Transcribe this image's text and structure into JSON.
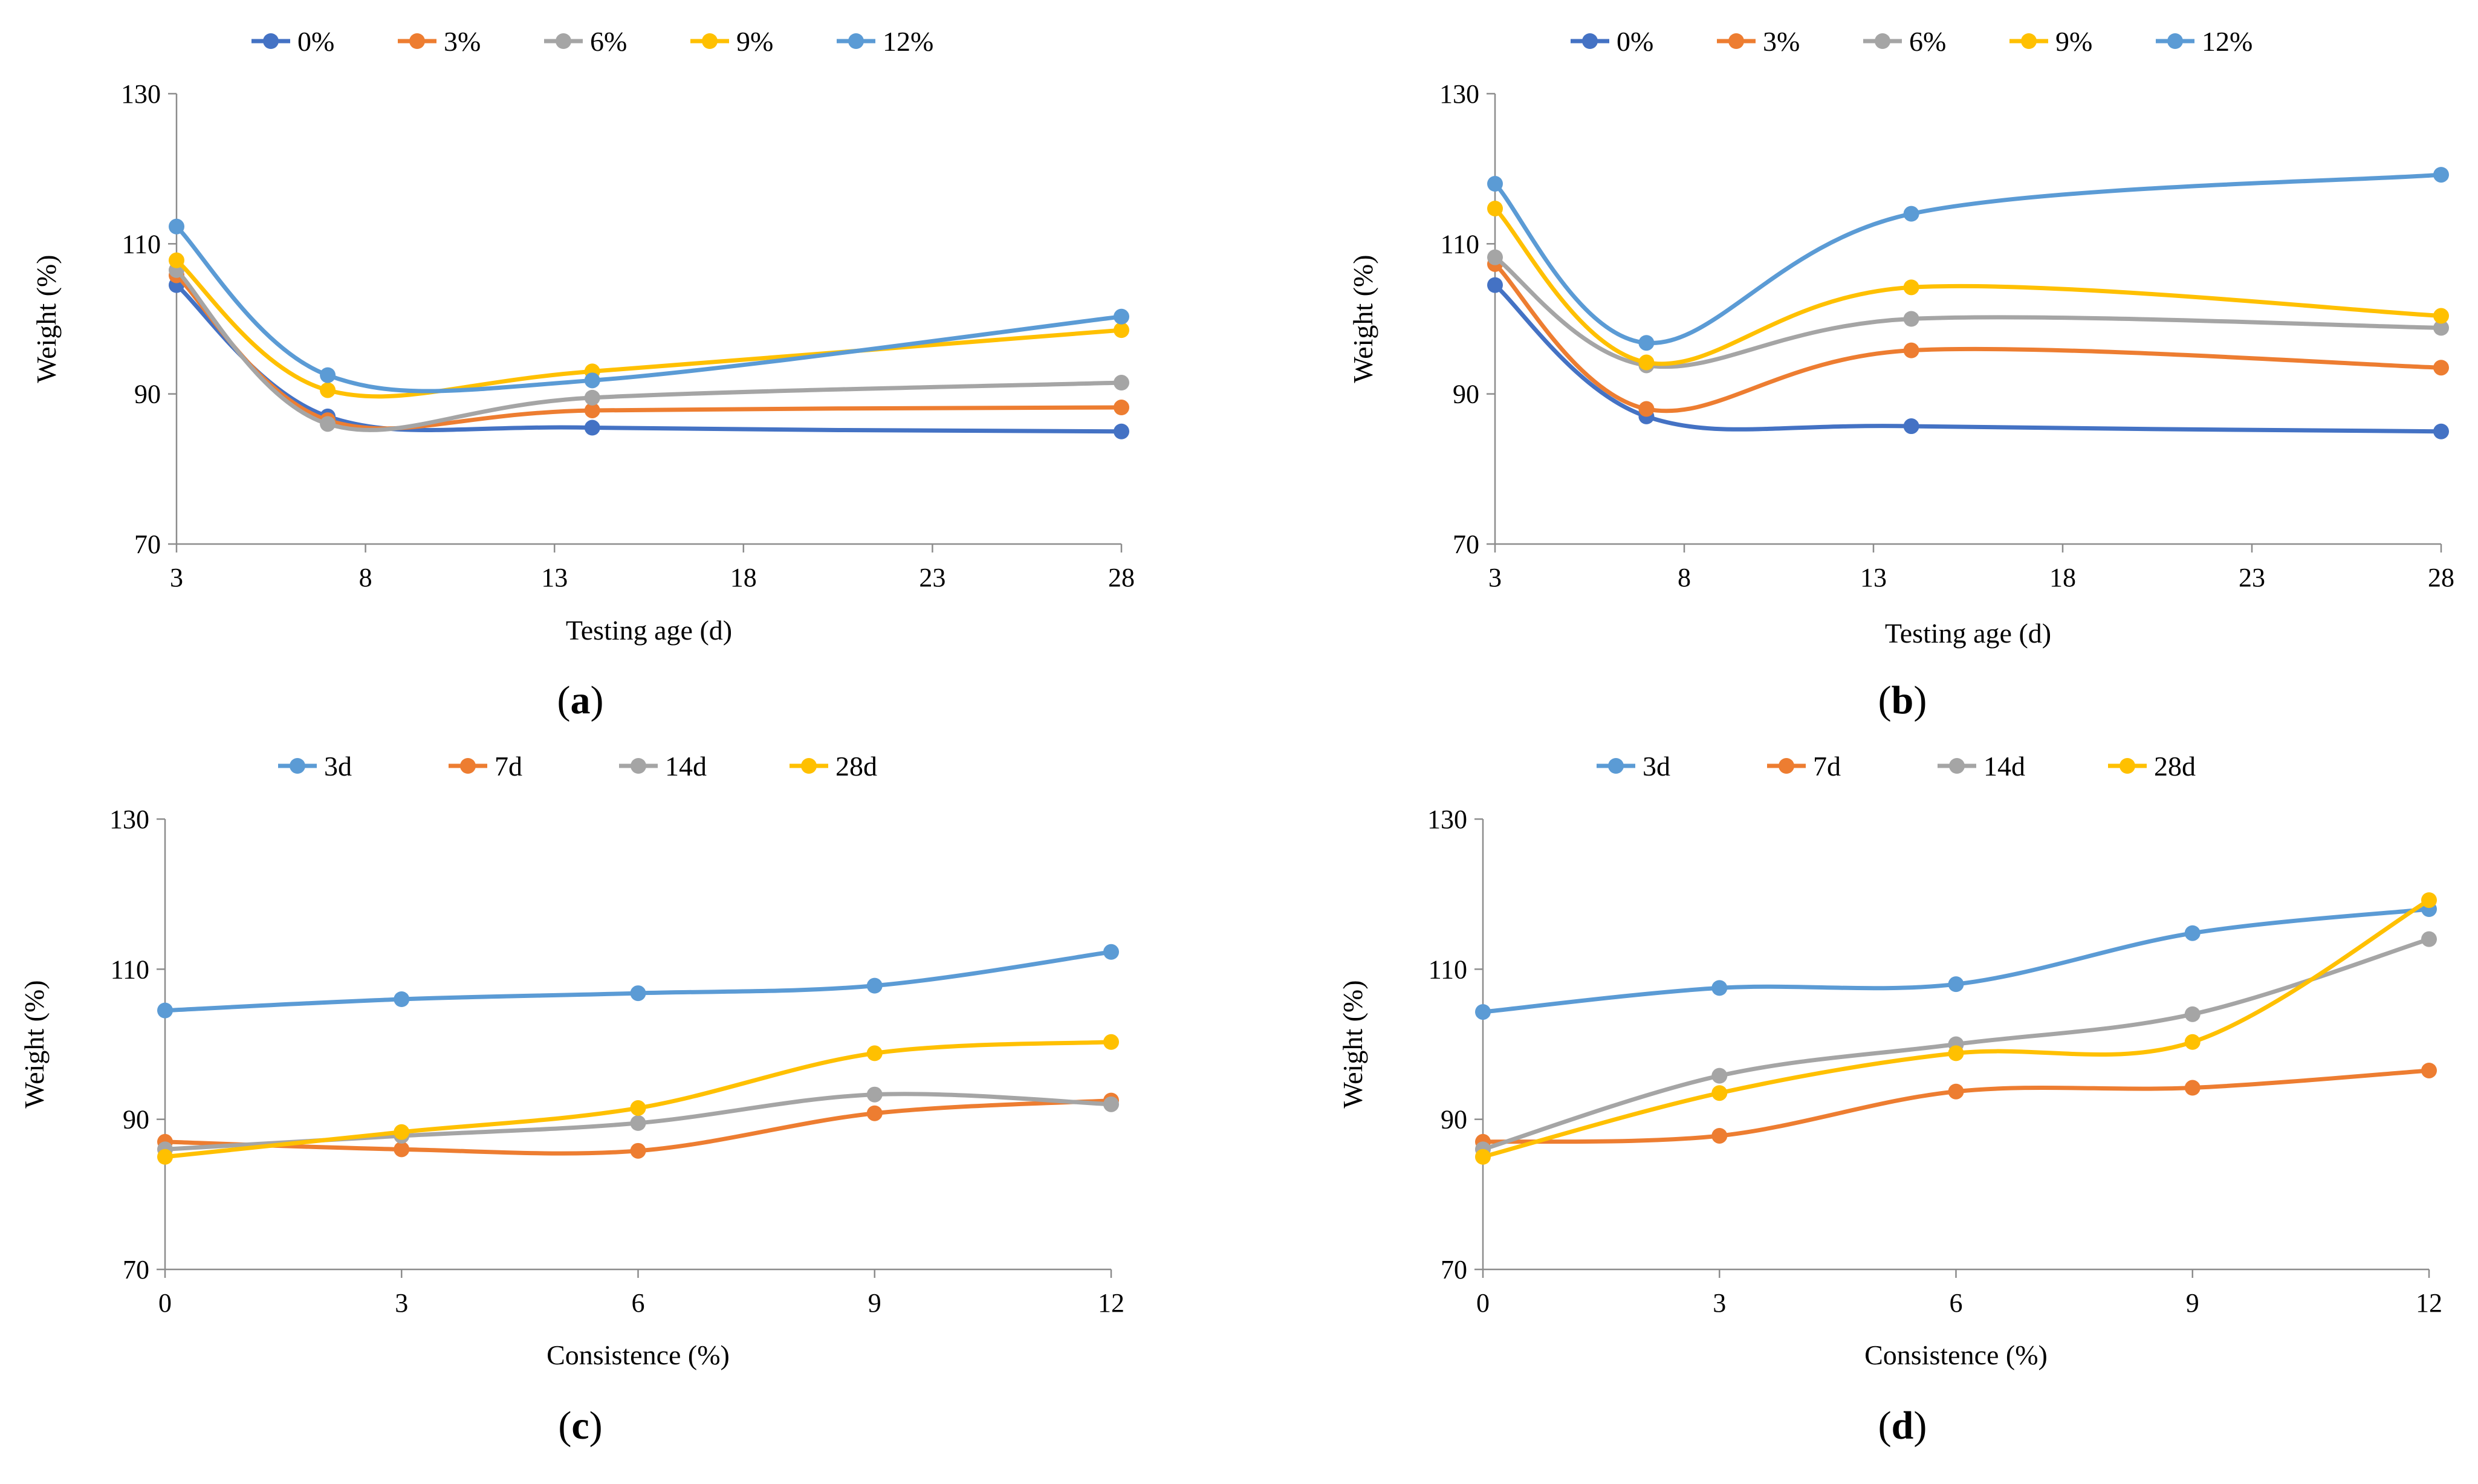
{
  "colors": {
    "c1": "#4472C4",
    "c2": "#ED7D31",
    "c3": "#A5A5A5",
    "c4": "#FFC000",
    "c5": "#5B9BD5"
  },
  "chart_data": [
    {
      "id": "a",
      "type": "line",
      "panel_label": "a",
      "xlabel": "Testing age (d)",
      "ylabel": "Weight (%)",
      "xlim": [
        3,
        28
      ],
      "ylim": [
        70,
        130
      ],
      "xticks": [
        3,
        8,
        13,
        18,
        23,
        28
      ],
      "yticks": [
        70,
        90,
        110,
        130
      ],
      "x": [
        3,
        7,
        14,
        28
      ],
      "series": [
        {
          "name": "0%",
          "color": "#4472C4",
          "values": [
            104.5,
            87.0,
            85.5,
            85.0
          ]
        },
        {
          "name": "3%",
          "color": "#ED7D31",
          "values": [
            105.8,
            86.5,
            87.8,
            88.2
          ]
        },
        {
          "name": "6%",
          "color": "#A5A5A5",
          "values": [
            106.5,
            86.0,
            89.5,
            91.5
          ]
        },
        {
          "name": "9%",
          "color": "#FFC000",
          "values": [
            107.8,
            90.5,
            93.0,
            98.5
          ]
        },
        {
          "name": "12%",
          "color": "#5B9BD5",
          "values": [
            112.3,
            92.5,
            91.8,
            100.3
          ]
        }
      ]
    },
    {
      "id": "b",
      "type": "line",
      "panel_label": "b",
      "xlabel": "Testing age (d)",
      "ylabel": "Weight (%)",
      "xlim": [
        3,
        28
      ],
      "ylim": [
        70,
        130
      ],
      "xticks": [
        3,
        8,
        13,
        18,
        23,
        28
      ],
      "yticks": [
        70,
        90,
        110,
        130
      ],
      "x": [
        3,
        7,
        14,
        28
      ],
      "series": [
        {
          "name": "0%",
          "color": "#4472C4",
          "values": [
            104.5,
            87.0,
            85.7,
            85.0
          ]
        },
        {
          "name": "3%",
          "color": "#ED7D31",
          "values": [
            107.3,
            88.0,
            95.8,
            93.5
          ]
        },
        {
          "name": "6%",
          "color": "#A5A5A5",
          "values": [
            108.2,
            93.8,
            100.0,
            98.8
          ]
        },
        {
          "name": "9%",
          "color": "#FFC000",
          "values": [
            114.7,
            94.2,
            104.2,
            100.4
          ]
        },
        {
          "name": "12%",
          "color": "#5B9BD5",
          "values": [
            118.0,
            96.8,
            114.0,
            119.2
          ]
        }
      ]
    },
    {
      "id": "c",
      "type": "line",
      "panel_label": "c",
      "xlabel": "Consistence (%)",
      "ylabel": "Weight (%)",
      "xlim": [
        0,
        12
      ],
      "ylim": [
        70,
        130
      ],
      "xticks": [
        0,
        3,
        6,
        9,
        12
      ],
      "yticks": [
        70,
        90,
        110,
        130
      ],
      "x": [
        0,
        3,
        6,
        9,
        12
      ],
      "series": [
        {
          "name": "3d",
          "color": "#5B9BD5",
          "values": [
            104.5,
            106.0,
            106.8,
            107.8,
            112.3
          ]
        },
        {
          "name": "7d",
          "color": "#ED7D31",
          "values": [
            87.0,
            86.0,
            85.8,
            90.8,
            92.5
          ]
        },
        {
          "name": "14d",
          "color": "#A5A5A5",
          "values": [
            86.0,
            87.8,
            89.5,
            93.3,
            92.0
          ]
        },
        {
          "name": "28d",
          "color": "#FFC000",
          "values": [
            85.0,
            88.3,
            91.5,
            98.8,
            100.3
          ]
        }
      ]
    },
    {
      "id": "d",
      "type": "line",
      "panel_label": "d",
      "xlabel": "Consistence (%)",
      "ylabel": "Weight (%)",
      "xlim": [
        0,
        12
      ],
      "ylim": [
        70,
        130
      ],
      "xticks": [
        0,
        3,
        6,
        9,
        12
      ],
      "yticks": [
        70,
        90,
        110,
        130
      ],
      "x": [
        0,
        3,
        6,
        9,
        12
      ],
      "series": [
        {
          "name": "3d",
          "color": "#5B9BD5",
          "values": [
            104.3,
            107.5,
            108.0,
            114.8,
            118.0
          ]
        },
        {
          "name": "7d",
          "color": "#ED7D31",
          "values": [
            87.0,
            87.8,
            93.7,
            94.2,
            96.5
          ]
        },
        {
          "name": "14d",
          "color": "#A5A5A5",
          "values": [
            86.0,
            95.8,
            100.0,
            104.0,
            114.0
          ]
        },
        {
          "name": "28d",
          "color": "#FFC000",
          "values": [
            85.0,
            93.5,
            98.8,
            100.3,
            119.2
          ]
        }
      ]
    }
  ]
}
